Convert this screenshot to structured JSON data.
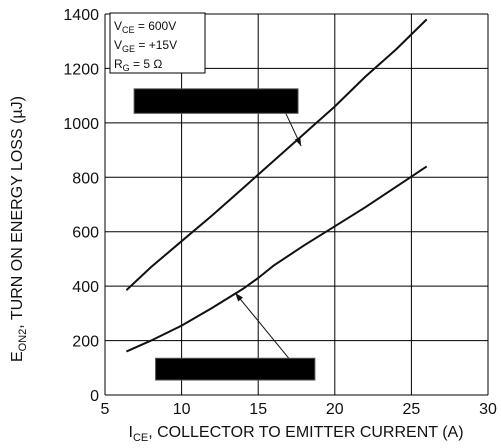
{
  "chart_data": {
    "type": "line",
    "xlabel": {
      "main": "I",
      "sub": "CE",
      "rest": ", COLLECTOR TO EMITTER CURRENT (A)"
    },
    "ylabel": {
      "main": "E",
      "sub": "ON2",
      "rest": ", TURN ON ENERGY LOSS (µJ)"
    },
    "xlim": [
      5,
      30
    ],
    "ylim": [
      0,
      1400
    ],
    "xticks": [
      5,
      10,
      15,
      20,
      25,
      30
    ],
    "yticks": [
      0,
      200,
      400,
      600,
      800,
      1000,
      1200,
      1400
    ],
    "grid": true,
    "conditions": [
      {
        "symbol": "V",
        "sub": "CE",
        "rest": " =  600V"
      },
      {
        "symbol": "V",
        "sub": "GE",
        "rest": " = +15V"
      },
      {
        "symbol": "R",
        "sub": "G",
        "rest": " = 5 Ω"
      }
    ],
    "series": [
      {
        "x": [
          6.4,
          8,
          10,
          12,
          14,
          15,
          16,
          18,
          20,
          22,
          24,
          26
        ],
        "values": [
          385,
          470,
          565,
          660,
          760,
          810,
          860,
          960,
          1060,
          1170,
          1270,
          1380
        ]
      },
      {
        "x": [
          6.4,
          8,
          10,
          12,
          14,
          15,
          16,
          18,
          20,
          22,
          24,
          26
        ],
        "values": [
          160,
          200,
          255,
          320,
          390,
          430,
          475,
          550,
          620,
          690,
          765,
          840
        ]
      }
    ],
    "callouts": [
      {
        "box_x": [
          6.9,
          17.6
        ],
        "box_y": [
          1035,
          1125
        ],
        "target": [
          17.8,
          915
        ],
        "anchor": [
          16.8,
          1035
        ]
      },
      {
        "box_x": [
          8.3,
          18.7
        ],
        "box_y": [
          55,
          135
        ],
        "target": [
          13.5,
          375
        ],
        "anchor": [
          17,
          135
        ]
      }
    ],
    "colors": {
      "line": "#111111",
      "redaction": "#000000",
      "background": "#ffffff"
    }
  }
}
